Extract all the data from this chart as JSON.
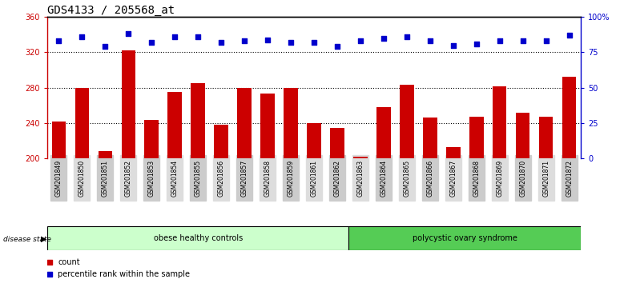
{
  "title": "GDS4133 / 205568_at",
  "samples": [
    "GSM201849",
    "GSM201850",
    "GSM201851",
    "GSM201852",
    "GSM201853",
    "GSM201854",
    "GSM201855",
    "GSM201856",
    "GSM201857",
    "GSM201858",
    "GSM201859",
    "GSM201861",
    "GSM201862",
    "GSM201863",
    "GSM201864",
    "GSM201865",
    "GSM201866",
    "GSM201867",
    "GSM201868",
    "GSM201869",
    "GSM201870",
    "GSM201871",
    "GSM201872"
  ],
  "counts": [
    242,
    280,
    208,
    322,
    244,
    275,
    285,
    238,
    280,
    273,
    280,
    240,
    235,
    202,
    258,
    283,
    246,
    213,
    247,
    282,
    252,
    247,
    292
  ],
  "percentile_ranks": [
    83,
    86,
    79,
    88,
    82,
    86,
    86,
    82,
    83,
    84,
    82,
    82,
    79,
    83,
    85,
    86,
    83,
    80,
    81,
    83,
    83,
    83,
    87
  ],
  "group1_label": "obese healthy controls",
  "group2_label": "polycystic ovary syndrome",
  "group1_count": 13,
  "group2_count": 10,
  "bar_color": "#cc0000",
  "dot_color": "#0000cc",
  "group1_bg": "#ccffcc",
  "group2_bg": "#55cc55",
  "ylim_left": [
    200,
    360
  ],
  "ylim_right": [
    0,
    100
  ],
  "yticks_left": [
    200,
    240,
    280,
    320,
    360
  ],
  "yticks_right": [
    0,
    25,
    50,
    75,
    100
  ],
  "ytick_labels_right": [
    "0",
    "25",
    "50",
    "75",
    "100%"
  ],
  "grid_values": [
    240,
    280,
    320
  ],
  "title_fontsize": 10,
  "bg_color": "#ffffff"
}
